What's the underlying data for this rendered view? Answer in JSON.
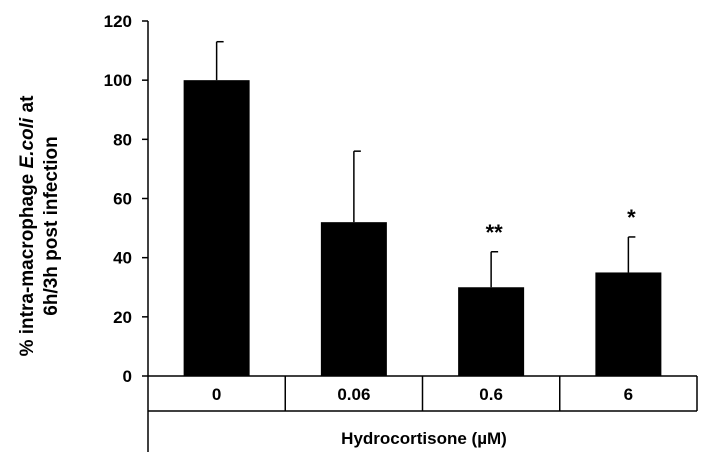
{
  "chart_data": {
    "type": "bar",
    "categories": [
      "0",
      "0.06",
      "0.6",
      "6"
    ],
    "values": [
      100,
      52,
      30,
      35
    ],
    "errors": [
      13,
      24,
      12,
      12
    ],
    "significance": [
      "",
      "",
      "**",
      "*"
    ],
    "xlabel": "Hydrocortisone (µM)",
    "ylabel_line1_prefix": "% intra-macrophage ",
    "ylabel_line1_italic": "E.coli",
    "ylabel_line1_suffix": " at",
    "ylabel_line2": "6h/3h post infection",
    "ylim": [
      0,
      120
    ],
    "yticks": [
      0,
      20,
      40,
      60,
      80,
      100,
      120
    ],
    "grid": false,
    "legend": "none",
    "bar_color": "#000000"
  }
}
